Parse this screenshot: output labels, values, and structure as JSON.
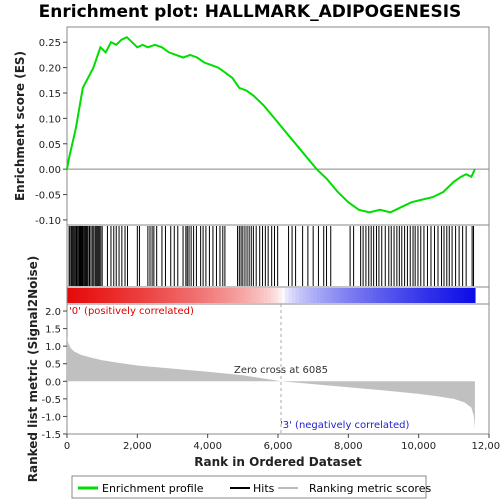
{
  "chart_data": {
    "type": "line",
    "title": "Enrichment plot: HALLMARK_ADIPOGENESIS",
    "panels": {
      "enrichment": {
        "ylabel": "Enrichment score (ES)",
        "ylim": [
          -0.11,
          0.28
        ],
        "yticks": [
          "-0.10",
          "-0.05",
          "0.00",
          "0.05",
          "0.10",
          "0.15",
          "0.20",
          "0.25"
        ],
        "ytick_values": [
          -0.1,
          -0.05,
          0.0,
          0.05,
          0.1,
          0.15,
          0.2,
          0.25
        ],
        "series_color": "#00dd00",
        "series": [
          {
            "name": "Enrichment profile",
            "x": [
              0,
              50,
              150,
              250,
              350,
              450,
              600,
              750,
              850,
              950,
              1100,
              1250,
              1400,
              1550,
              1700,
              1850,
              2000,
              2150,
              2300,
              2500,
              2700,
              2900,
              3100,
              3300,
              3500,
              3700,
              3900,
              4100,
              4300,
              4500,
              4700,
              4900,
              5100,
              5300,
              5600,
              5900,
              6200,
              6500,
              6800,
              7100,
              7400,
              7700,
              8000,
              8300,
              8600,
              8900,
              9200,
              9500,
              9800,
              10100,
              10400,
              10700,
              11000,
              11200,
              11350,
              11500,
              11600
            ],
            "y": [
              0.0,
              0.02,
              0.05,
              0.08,
              0.12,
              0.16,
              0.18,
              0.2,
              0.22,
              0.24,
              0.23,
              0.25,
              0.245,
              0.255,
              0.26,
              0.25,
              0.24,
              0.245,
              0.24,
              0.245,
              0.24,
              0.23,
              0.225,
              0.22,
              0.225,
              0.22,
              0.21,
              0.205,
              0.2,
              0.19,
              0.18,
              0.16,
              0.155,
              0.145,
              0.125,
              0.1,
              0.075,
              0.05,
              0.025,
              0.0,
              -0.02,
              -0.045,
              -0.065,
              -0.08,
              -0.085,
              -0.08,
              -0.085,
              -0.075,
              -0.065,
              -0.06,
              -0.055,
              -0.045,
              -0.025,
              -0.015,
              -0.01,
              -0.015,
              0.0
            ]
          }
        ]
      },
      "ranked_metric": {
        "ylabel": "Ranked list metric (Signal2Noise)",
        "ylim": [
          -1.5,
          2.2
        ],
        "yticks": [
          "-1.5",
          "-1.0",
          "-0.5",
          "0.0",
          "0.5",
          "1.0",
          "1.5",
          "2.0"
        ],
        "ytick_values": [
          -1.5,
          -1.0,
          -0.5,
          0.0,
          0.5,
          1.0,
          1.5,
          2.0
        ],
        "x": [
          0,
          30,
          100,
          200,
          400,
          700,
          1000,
          1500,
          2000,
          3000,
          4000,
          5000,
          6085,
          7000,
          8000,
          9000,
          10000,
          10500,
          11000,
          11300,
          11500,
          11570,
          11600
        ],
        "y": [
          1.3,
          1.1,
          0.95,
          0.85,
          0.75,
          0.67,
          0.6,
          0.52,
          0.45,
          0.36,
          0.27,
          0.17,
          0.0,
          -0.08,
          -0.17,
          -0.26,
          -0.36,
          -0.42,
          -0.5,
          -0.6,
          -0.75,
          -1.0,
          -1.35
        ],
        "zero_cross_label": "Zero cross at 6085",
        "zero_cross": 6085,
        "pos_label": "'0' (positively correlated)",
        "neg_label": "'3' (negatively correlated)"
      }
    },
    "xlabel": "Rank in Ordered Dataset",
    "xlim": [
      0,
      12000
    ],
    "xticks": [
      "0",
      "2,000",
      "4,000",
      "6,000",
      "8,000",
      "10,000",
      "12,000"
    ],
    "xtick_values": [
      0,
      2000,
      4000,
      6000,
      8000,
      10000,
      12000
    ],
    "total_ranks": 11600,
    "hit_ranks": [
      60,
      90,
      130,
      160,
      190,
      220,
      250,
      270,
      290,
      320,
      350,
      370,
      390,
      410,
      430,
      450,
      480,
      510,
      540,
      570,
      600,
      640,
      680,
      720,
      760,
      800,
      830,
      860,
      890,
      920,
      960,
      1000,
      1150,
      1250,
      1330,
      1400,
      1480,
      1560,
      1650,
      1720,
      2000,
      2060,
      2300,
      2360,
      2420,
      2470,
      2550,
      2700,
      2800,
      2950,
      3050,
      3150,
      3300,
      3380,
      3420,
      3470,
      3530,
      3600,
      3680,
      3800,
      3870,
      3950,
      4050,
      4150,
      4250,
      4350,
      4430,
      4490,
      4850,
      4900,
      4950,
      5000,
      5060,
      5120,
      5180,
      5240,
      5300,
      5380,
      5480,
      5560,
      5640,
      5720,
      5820,
      5900,
      5990,
      6300,
      6400,
      6500,
      6700,
      6850,
      7000,
      7150,
      7300,
      7380,
      7500,
      8050,
      8150,
      8350,
      8420,
      8500,
      8580,
      8650,
      8720,
      8800,
      8870,
      8950,
      9050,
      9150,
      9220,
      9300,
      9380,
      9450,
      9520,
      9600,
      9680,
      9760,
      9840,
      9900,
      9980,
      10060,
      10150,
      10250,
      10350,
      10450,
      10550,
      10650,
      10720,
      10800,
      10870,
      10950,
      11050,
      11150,
      11250,
      11350,
      11520,
      11560
    ],
    "legend": [
      {
        "label": "Enrichment profile",
        "color": "#00dd00"
      },
      {
        "label": "Hits",
        "color": "#000000"
      },
      {
        "label": "Ranking metric scores",
        "color": "#bbbbbb"
      }
    ]
  }
}
